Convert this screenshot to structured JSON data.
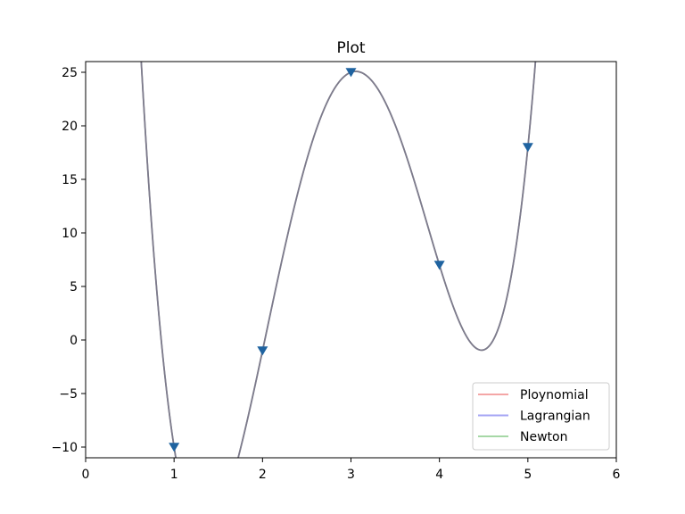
{
  "chart_data": {
    "type": "line",
    "title": "Plot",
    "xlabel": "",
    "ylabel": "",
    "xlim": [
      0,
      6
    ],
    "ylim": [
      -11,
      26
    ],
    "xticks": [
      0,
      1,
      2,
      3,
      4,
      5,
      6
    ],
    "yticks": [
      -10,
      -5,
      0,
      5,
      10,
      15,
      20,
      25
    ],
    "grid": false,
    "legend_position": "lower-right",
    "points": {
      "marker": "triangle-down",
      "color": "#1f63a0",
      "x": [
        1,
        2,
        3,
        4,
        5
      ],
      "y": [
        -10,
        -1,
        25,
        7,
        18
      ]
    },
    "series": [
      {
        "name": "Ploynomial",
        "color": "#f4a6a6"
      },
      {
        "name": "Lagrangian",
        "color": "#a6a6f4"
      },
      {
        "name": "Newton",
        "color": "#a6d8a6"
      }
    ],
    "curve_color": "#7d7a8c"
  }
}
